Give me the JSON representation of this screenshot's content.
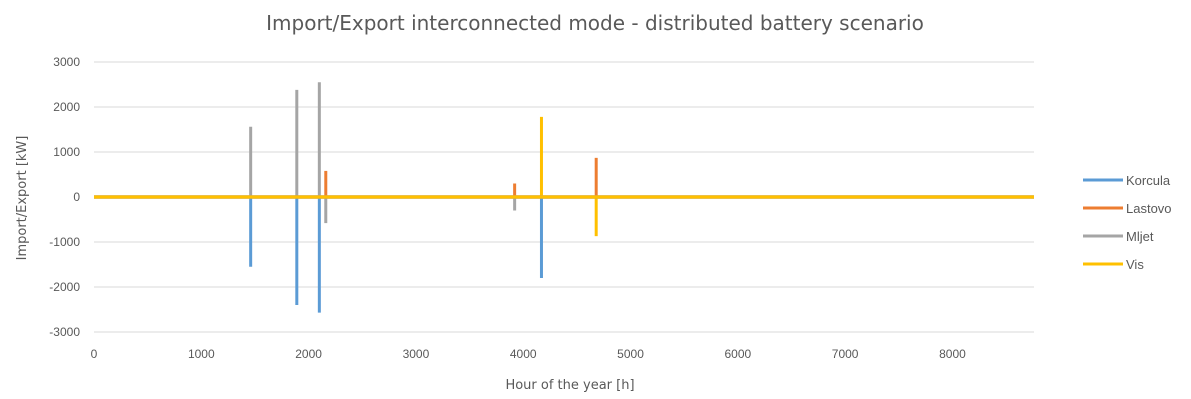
{
  "chart_data": {
    "type": "line",
    "title": "Import/Export interconnected mode - distributed battery scenario",
    "xlabel": "Hour of the year [h]",
    "ylabel": "Import/Export [kW]",
    "xlim": [
      0,
      8760
    ],
    "ylim": [
      -3000,
      3000
    ],
    "x_ticks": [
      0,
      1000,
      2000,
      3000,
      4000,
      5000,
      6000,
      7000,
      8000
    ],
    "y_ticks": [
      3000,
      2000,
      1000,
      0,
      -1000,
      -2000,
      -3000
    ],
    "grid": true,
    "legend_position": "right",
    "series": [
      {
        "name": "Korcula",
        "color": "#5b9bd5",
        "spikes": [
          {
            "x": 1460,
            "value": -1550
          },
          {
            "x": 1890,
            "value": -2400
          },
          {
            "x": 2100,
            "value": -2570
          },
          {
            "x": 4170,
            "value": -1800
          }
        ]
      },
      {
        "name": "Lastovo",
        "color": "#ed7d31",
        "spikes": [
          {
            "x": 2160,
            "value": 580
          },
          {
            "x": 3920,
            "value": 300
          },
          {
            "x": 4680,
            "value": 870
          }
        ]
      },
      {
        "name": "Mljet",
        "color": "#a5a5a5",
        "spikes": [
          {
            "x": 1460,
            "value": 1560
          },
          {
            "x": 1890,
            "value": 2380
          },
          {
            "x": 2100,
            "value": 2550
          },
          {
            "x": 2160,
            "value": -580
          },
          {
            "x": 3920,
            "value": -300
          }
        ]
      },
      {
        "name": "Vis",
        "color": "#ffc000",
        "spikes": [
          {
            "x": 4170,
            "value": 1780
          },
          {
            "x": 4680,
            "value": -870
          }
        ]
      }
    ]
  }
}
